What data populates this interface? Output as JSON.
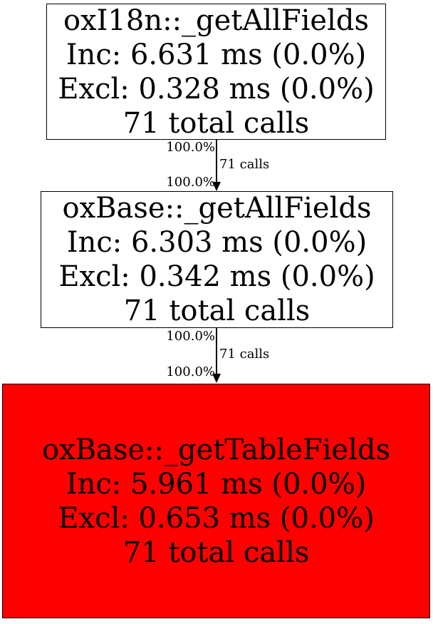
{
  "diagram": {
    "type": "call-graph",
    "background": "#ffffff",
    "edge_color": "#000000",
    "nodes": [
      {
        "function": "oxI18n::_getAllFields",
        "inclusive": "Inc: 6.631 ms (0.0%)",
        "exclusive": "Excl: 0.328 ms (0.0%)",
        "calls": "71 total calls",
        "fill": "#ffffff",
        "border": "#000000",
        "text_color": "#000000"
      },
      {
        "function": "oxBase::_getAllFields",
        "inclusive": "Inc: 6.303 ms (0.0%)",
        "exclusive": "Excl: 0.342 ms (0.0%)",
        "calls": "71 total calls",
        "fill": "#ffffff",
        "border": "#000000",
        "text_color": "#000000"
      },
      {
        "function": "oxBase::_getTableFields",
        "inclusive": "Inc: 5.961 ms (0.0%)",
        "exclusive": "Excl: 0.653 ms (0.0%)",
        "calls": "71 total calls",
        "fill": "#ff0000",
        "border": "#000000",
        "text_color": "#000000"
      }
    ],
    "edges": [
      {
        "from": "oxI18n::_getAllFields",
        "to": "oxBase::_getAllFields",
        "percent_out": "100.0%",
        "calls": "71 calls",
        "percent_in": "100.0%"
      },
      {
        "from": "oxBase::_getAllFields",
        "to": "oxBase::_getTableFields",
        "percent_out": "100.0%",
        "calls": "71 calls",
        "percent_in": "100.0%"
      }
    ]
  }
}
